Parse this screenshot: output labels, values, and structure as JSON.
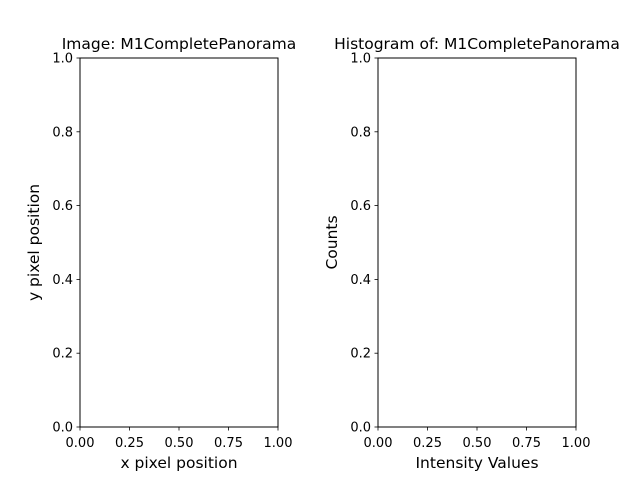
{
  "chart_data": [
    {
      "type": "scatter",
      "title": "Image: M1CompletePanorama",
      "xlabel": "x pixel position",
      "ylabel": "y pixel position",
      "xlim": [
        0,
        1
      ],
      "ylim": [
        0,
        1
      ],
      "xticks": [
        "0.00",
        "0.25",
        "0.50",
        "0.75",
        "1.00"
      ],
      "yticks": [
        "0.0",
        "0.2",
        "0.4",
        "0.6",
        "0.8",
        "1.0"
      ],
      "grid": false,
      "series": []
    },
    {
      "type": "bar",
      "title": "Histogram of: M1CompletePanorama",
      "xlabel": "Intensity Values",
      "ylabel": "Counts",
      "xlim": [
        0,
        1
      ],
      "ylim": [
        0,
        1
      ],
      "xticks": [
        "0.00",
        "0.25",
        "0.50",
        "0.75",
        "1.00"
      ],
      "yticks": [
        "0.0",
        "0.2",
        "0.4",
        "0.6",
        "0.8",
        "1.0"
      ],
      "grid": false,
      "series": []
    }
  ],
  "colors": {
    "axes_edge": "#000000",
    "background": "#ffffff"
  }
}
